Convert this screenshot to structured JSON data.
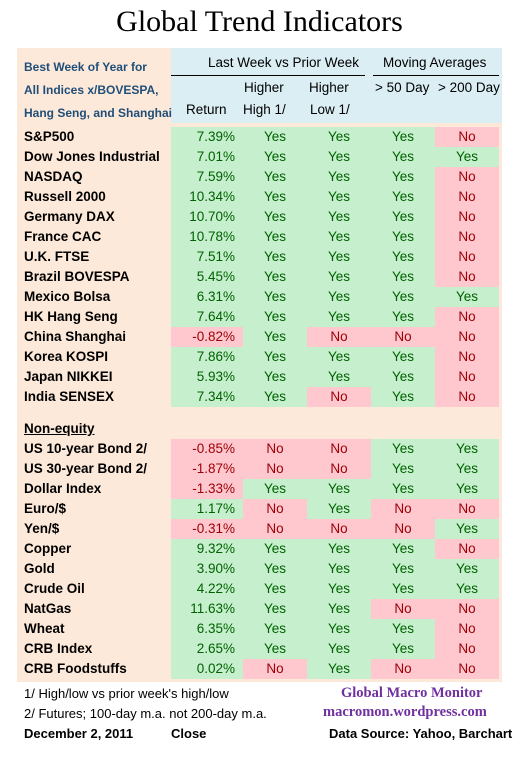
{
  "title": "Global Trend Indicators",
  "header": {
    "left_lines": [
      "Best Week of Year for",
      "All Indices x/BOVESPA,",
      "Hang Seng, and Shanghai"
    ],
    "group1": "Last Week vs Prior Week",
    "group2": "Moving Averages",
    "col_return": "Return",
    "col_hh_1": "Higher",
    "col_hh_2": "High 1/",
    "col_hl_1": "Higher",
    "col_hl_2": "Low  1/",
    "col_ma50": "> 50 Day",
    "col_ma200": "> 200 Day"
  },
  "equity": [
    {
      "name": "S&P500",
      "ret": "7.39%",
      "hh": "Yes",
      "hl": "Yes",
      "ma50": "Yes",
      "ma200": "No"
    },
    {
      "name": "Dow Jones Industrial",
      "ret": "7.01%",
      "hh": "Yes",
      "hl": "Yes",
      "ma50": "Yes",
      "ma200": "Yes"
    },
    {
      "name": "NASDAQ",
      "ret": "7.59%",
      "hh": "Yes",
      "hl": "Yes",
      "ma50": "Yes",
      "ma200": "No"
    },
    {
      "name": "Russell 2000",
      "ret": "10.34%",
      "hh": "Yes",
      "hl": "Yes",
      "ma50": "Yes",
      "ma200": "No"
    },
    {
      "name": "Germany DAX",
      "ret": "10.70%",
      "hh": "Yes",
      "hl": "Yes",
      "ma50": "Yes",
      "ma200": "No"
    },
    {
      "name": "France CAC",
      "ret": "10.78%",
      "hh": "Yes",
      "hl": "Yes",
      "ma50": "Yes",
      "ma200": "No"
    },
    {
      "name": "U.K. FTSE",
      "ret": "7.51%",
      "hh": "Yes",
      "hl": "Yes",
      "ma50": "Yes",
      "ma200": "No"
    },
    {
      "name": "Brazil BOVESPA",
      "ret": "5.45%",
      "hh": "Yes",
      "hl": "Yes",
      "ma50": "Yes",
      "ma200": "No"
    },
    {
      "name": "Mexico Bolsa",
      "ret": "6.31%",
      "hh": "Yes",
      "hl": "Yes",
      "ma50": "Yes",
      "ma200": "Yes"
    },
    {
      "name": "HK  Hang Seng",
      "ret": "7.64%",
      "hh": "Yes",
      "hl": "Yes",
      "ma50": "Yes",
      "ma200": "No"
    },
    {
      "name": "China Shanghai",
      "ret": "-0.82%",
      "hh": "Yes",
      "hl": "No",
      "ma50": "No",
      "ma200": "No"
    },
    {
      "name": "Korea KOSPI",
      "ret": "7.86%",
      "hh": "Yes",
      "hl": "Yes",
      "ma50": "Yes",
      "ma200": "No"
    },
    {
      "name": "Japan NIKKEI",
      "ret": "5.93%",
      "hh": "Yes",
      "hl": "Yes",
      "ma50": "Yes",
      "ma200": "No"
    },
    {
      "name": "India SENSEX",
      "ret": "7.34%",
      "hh": "Yes",
      "hl": "No",
      "ma50": "Yes",
      "ma200": "No"
    }
  ],
  "section_label": "Non-equity",
  "nonequity": [
    {
      "name": "US 10-year Bond 2/",
      "ret": "-0.85%",
      "hh": "No",
      "hl": "No",
      "ma50": "Yes",
      "ma200": "Yes"
    },
    {
      "name": "US 30-year Bond 2/",
      "ret": "-1.87%",
      "hh": "No",
      "hl": "No",
      "ma50": "Yes",
      "ma200": "Yes"
    },
    {
      "name": "Dollar Index",
      "ret": "-1.33%",
      "hh": "Yes",
      "hl": "Yes",
      "ma50": "Yes",
      "ma200": "Yes"
    },
    {
      "name": "Euro/$",
      "ret": "1.17%",
      "hh": "No",
      "hl": "Yes",
      "ma50": "No",
      "ma200": "No"
    },
    {
      "name": "Yen/$",
      "ret": "-0.31%",
      "hh": "No",
      "hl": "No",
      "ma50": "No",
      "ma200": "Yes"
    },
    {
      "name": "Copper",
      "ret": "9.32%",
      "hh": "Yes",
      "hl": "Yes",
      "ma50": "Yes",
      "ma200": "No"
    },
    {
      "name": "Gold",
      "ret": "3.90%",
      "hh": "Yes",
      "hl": "Yes",
      "ma50": "Yes",
      "ma200": "Yes"
    },
    {
      "name": "Crude Oil",
      "ret": "4.22%",
      "hh": "Yes",
      "hl": "Yes",
      "ma50": "Yes",
      "ma200": "Yes"
    },
    {
      "name": "NatGas",
      "ret": "11.63%",
      "hh": "Yes",
      "hl": "Yes",
      "ma50": "No",
      "ma200": "No"
    },
    {
      "name": "Wheat",
      "ret": "6.35%",
      "hh": "Yes",
      "hl": "Yes",
      "ma50": "Yes",
      "ma200": "No"
    },
    {
      "name": "CRB Index",
      "ret": "2.65%",
      "hh": "Yes",
      "hl": "Yes",
      "ma50": "Yes",
      "ma200": "No"
    },
    {
      "name": "CRB Foodstuffs",
      "ret": "0.02%",
      "hh": "No",
      "hl": "Yes",
      "ma50": "No",
      "ma200": "No"
    }
  ],
  "footer": {
    "note1": "1/  High/low vs prior week's high/low",
    "note2": "2/  Futures;  100-day m.a. not 200-day m.a.",
    "date": "December 2, 2011",
    "close": "Close",
    "brand": "Global Macro Monitor",
    "site": "macromon.wordpress.com",
    "source": "Data Source: Yahoo, Barchart"
  },
  "colors": {
    "positive_bg": "#c6efce",
    "positive_text": "#006100",
    "negative_bg": "#ffc7ce",
    "negative_text": "#9c0006",
    "panel": "#fde9d9",
    "header": "#dbeef4"
  }
}
